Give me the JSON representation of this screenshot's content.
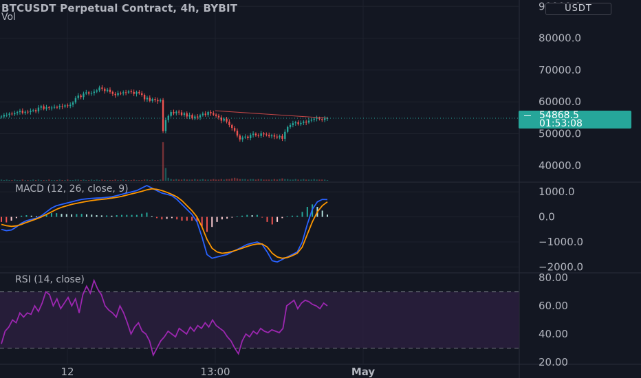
{
  "header": {
    "title": "BTCUSDT Perpetual Contract, 4h, BYBIT",
    "volume_label": "Vol",
    "currency_button": "USDT"
  },
  "last_price": {
    "value": "54868.5",
    "countdown": "01:53:08",
    "color": "#26a69a"
  },
  "panes": {
    "macd_label": "MACD (12, 26, close, 9)",
    "rsi_label": "RSI (14, close)"
  },
  "colors": {
    "background": "#131722",
    "up": "#26a69a",
    "down": "#ef5350",
    "macd_line": "#2962ff",
    "signal_line": "#ff9800",
    "rsi_line": "#9c27b0",
    "rsi_band": "#2a1e3d"
  },
  "chart_data": [
    {
      "type": "candlestick",
      "title": "BTCUSDT Perpetual Contract, 4h, BYBIT",
      "y_ticks": [
        "90000.0",
        "80000.0",
        "70000.0",
        "60000.0",
        "50000.0",
        "40000.0"
      ],
      "ylim": [
        35000,
        92000
      ],
      "x_ticks": [
        "12",
        "13:00",
        "May"
      ],
      "last_price": 54868.5,
      "trend_line": [
        [
          0.0,
          57200
        ],
        [
          1.0,
          54900
        ]
      ],
      "close": [
        55400,
        55900,
        55900,
        56300,
        56100,
        56500,
        56800,
        57200,
        56500,
        56900,
        56800,
        57200,
        57400,
        57000,
        58200,
        58600,
        57800,
        58300,
        58100,
        58200,
        58400,
        58300,
        58700,
        58500,
        58900,
        58700,
        59100,
        59800,
        61200,
        62000,
        61500,
        62600,
        63000,
        62600,
        62800,
        63200,
        63600,
        64500,
        64100,
        63400,
        63800,
        63100,
        62500,
        62100,
        62800,
        62700,
        63000,
        62900,
        63300,
        63100,
        62500,
        63100,
        62700,
        62200,
        60800,
        61300,
        60300,
        60900,
        60600,
        60200,
        60600,
        50800,
        54300,
        55600,
        56800,
        56400,
        56900,
        56700,
        55900,
        56400,
        55400,
        55900,
        54800,
        55400,
        55100,
        55800,
        56300,
        55900,
        56800,
        56400,
        56000,
        55600,
        55100,
        54100,
        54700,
        53800,
        52700,
        51800,
        50900,
        49400,
        48200,
        48800,
        49100,
        48600,
        49600,
        50000,
        49500,
        49300,
        50100,
        49800,
        49600,
        49200,
        49500,
        49100,
        48800,
        49300,
        48400,
        50600,
        52100,
        52700,
        53300,
        53600,
        53000,
        53400,
        53800,
        53500,
        54100,
        54400,
        54700,
        54900,
        54600,
        54300,
        54800,
        54868
      ]
    },
    {
      "type": "bar",
      "title": "Vol",
      "values": [
        2,
        1,
        2,
        1,
        1,
        2,
        1,
        1,
        2,
        1,
        1,
        1,
        2,
        1,
        2,
        1,
        1,
        1,
        2,
        1,
        1,
        1,
        2,
        1,
        1,
        2,
        1,
        1,
        2,
        2,
        1,
        2,
        1,
        1,
        2,
        1,
        2,
        1,
        2,
        1,
        1,
        1,
        1,
        2,
        1,
        1,
        2,
        1,
        1,
        1,
        2,
        1,
        1,
        1,
        2,
        2,
        1,
        2,
        1,
        1,
        2,
        66,
        22,
        5,
        3,
        2,
        3,
        2,
        2,
        3,
        2,
        2,
        2,
        3,
        2,
        2,
        3,
        2,
        2,
        2,
        3,
        2,
        2,
        3,
        2,
        3,
        3,
        4,
        5,
        4,
        3,
        3,
        3,
        2,
        3,
        3,
        2,
        3,
        3,
        2,
        2,
        2,
        2,
        3,
        2,
        3,
        4,
        3,
        3,
        2,
        2,
        3,
        2,
        2,
        3,
        2,
        2,
        2,
        3,
        2,
        2,
        2,
        2,
        1
      ]
    },
    {
      "type": "line",
      "title": "MACD (12, 26, close, 9)",
      "y_ticks": [
        "1000.0",
        "0.0",
        "−1000.0",
        "−2000.0"
      ],
      "ylim": [
        -2150,
        1250
      ],
      "series": [
        {
          "name": "MACD",
          "values": [
            -500,
            -550,
            -520,
            -400,
            -250,
            -150,
            -100,
            -50,
            50,
            200,
            350,
            450,
            500,
            550,
            600,
            650,
            700,
            720,
            740,
            750,
            760,
            780,
            800,
            850,
            900,
            950,
            1000,
            1050,
            1150,
            1250,
            1150,
            1050,
            950,
            900,
            850,
            700,
            500,
            300,
            100,
            -200,
            -800,
            -1500,
            -1650,
            -1600,
            -1550,
            -1500,
            -1400,
            -1300,
            -1200,
            -1100,
            -1050,
            -1000,
            -1100,
            -1400,
            -1750,
            -1800,
            -1700,
            -1600,
            -1500,
            -1400,
            -1000,
            -300,
            300,
            600,
            700,
            690
          ]
        },
        {
          "name": "Signal",
          "values": [
            -300,
            -350,
            -380,
            -360,
            -300,
            -220,
            -150,
            -80,
            0,
            100,
            200,
            300,
            380,
            440,
            500,
            540,
            580,
            620,
            650,
            680,
            700,
            720,
            750,
            780,
            820,
            870,
            920,
            970,
            1020,
            1080,
            1120,
            1100,
            1050,
            980,
            900,
            800,
            650,
            450,
            250,
            0,
            -400,
            -900,
            -1250,
            -1400,
            -1450,
            -1430,
            -1380,
            -1320,
            -1250,
            -1180,
            -1120,
            -1080,
            -1080,
            -1200,
            -1450,
            -1600,
            -1650,
            -1620,
            -1550,
            -1450,
            -1200,
            -700,
            -200,
            200,
            450,
            600
          ]
        }
      ],
      "histogram": [
        -200,
        -220,
        -150,
        -50,
        50,
        70,
        50,
        30,
        50,
        100,
        150,
        150,
        120,
        110,
        100,
        110,
        120,
        100,
        90,
        70,
        60,
        60,
        50,
        70,
        80,
        80,
        80,
        80,
        130,
        170,
        30,
        -50,
        -100,
        -80,
        -50,
        -100,
        -150,
        -150,
        -150,
        -200,
        -400,
        -600,
        -400,
        -200,
        -100,
        -70,
        -20,
        20,
        50,
        80,
        70,
        80,
        -20,
        -200,
        -300,
        -200,
        -50,
        20,
        50,
        50,
        200,
        400,
        500,
        400,
        250,
        90
      ]
    },
    {
      "type": "line",
      "title": "RSI (14, close)",
      "y_ticks": [
        "80.00",
        "60.00",
        "40.00",
        "20.00"
      ],
      "ylim": [
        19,
        82
      ],
      "band": [
        30,
        70
      ],
      "series": [
        {
          "name": "RSI",
          "values": [
            33,
            42,
            45,
            50,
            48,
            55,
            52,
            55,
            54,
            60,
            56,
            62,
            70,
            68,
            60,
            65,
            58,
            62,
            66,
            60,
            65,
            55,
            68,
            74,
            69,
            78,
            72,
            68,
            60,
            57,
            55,
            52,
            60,
            55,
            48,
            40,
            45,
            48,
            42,
            40,
            35,
            25,
            30,
            35,
            38,
            42,
            40,
            38,
            44,
            42,
            40,
            45,
            42,
            46,
            44,
            48,
            45,
            50,
            46,
            44,
            42,
            38,
            35,
            30,
            26,
            35,
            40,
            38,
            42,
            40,
            44,
            42,
            41,
            43,
            42,
            41,
            44,
            60,
            62,
            64,
            58,
            62,
            64,
            63,
            61,
            60,
            58,
            62,
            60
          ]
        }
      ]
    }
  ]
}
